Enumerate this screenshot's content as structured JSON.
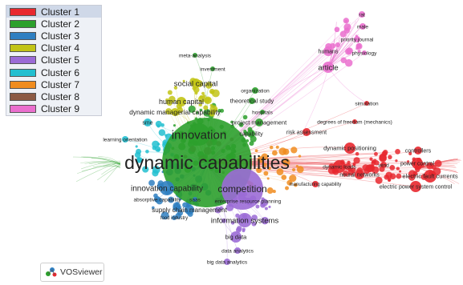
{
  "app": {
    "logo_text": "VOSviewer"
  },
  "legend": [
    {
      "label": "Cluster 1",
      "color": "#e8282f",
      "selected": true
    },
    {
      "label": "Cluster 2",
      "color": "#2ca02c"
    },
    {
      "label": "Cluster 3",
      "color": "#2f7fc1"
    },
    {
      "label": "Cluster 4",
      "color": "#c2c416"
    },
    {
      "label": "Cluster 5",
      "color": "#9b6bd6"
    },
    {
      "label": "Cluster 6",
      "color": "#22bfd0"
    },
    {
      "label": "Cluster 7",
      "color": "#f08c1e"
    },
    {
      "label": "Cluster 8",
      "color": "#8c5a44"
    },
    {
      "label": "Cluster 9",
      "color": "#ea6fce"
    }
  ],
  "network": {
    "terms": [
      {
        "label": "dynamic capabilities",
        "cluster": 2
      },
      {
        "label": "innovation",
        "cluster": 2
      },
      {
        "label": "competition",
        "cluster": 5
      },
      {
        "label": "innovation capability",
        "cluster": 3
      },
      {
        "label": "information systems",
        "cluster": 5
      },
      {
        "label": "supply chain management",
        "cluster": 3
      },
      {
        "label": "social capital",
        "cluster": 4
      },
      {
        "label": "human capital",
        "cluster": 4
      },
      {
        "label": "dynamic managerial capability",
        "cluster": 4
      },
      {
        "label": "sme",
        "cluster": 6
      },
      {
        "label": "learning orientation",
        "cluster": 6
      },
      {
        "label": "meta-analysis",
        "cluster": 2
      },
      {
        "label": "investment",
        "cluster": 2
      },
      {
        "label": "organization",
        "cluster": 2
      },
      {
        "label": "theoretical study",
        "cluster": 2
      },
      {
        "label": "hospitals",
        "cluster": 2
      },
      {
        "label": "project management",
        "cluster": 2
      },
      {
        "label": "capability",
        "cluster": 2
      },
      {
        "label": "risk assessment",
        "cluster": 1
      },
      {
        "label": "degrees of freedom (mechanics)",
        "cluster": 1
      },
      {
        "label": "dynamic positioning",
        "cluster": 1
      },
      {
        "label": "dynamic loads",
        "cluster": 1
      },
      {
        "label": "neural networks",
        "cluster": 1
      },
      {
        "label": "manufacturing capability",
        "cluster": 1
      },
      {
        "label": "controllers",
        "cluster": 1
      },
      {
        "label": "wind",
        "cluster": 1
      },
      {
        "label": "power control",
        "cluster": 1
      },
      {
        "label": "electric fault currents",
        "cluster": 1
      },
      {
        "label": "electric power system control",
        "cluster": 1
      },
      {
        "label": "absorptive capability",
        "cluster": 3
      },
      {
        "label": "saas",
        "cluster": 3
      },
      {
        "label": "enterprise resource planning",
        "cluster": 5
      },
      {
        "label": "food industry",
        "cluster": 3
      },
      {
        "label": "big data",
        "cluster": 5
      },
      {
        "label": "data analytics",
        "cluster": 5
      },
      {
        "label": "big data analytics",
        "cluster": 5
      },
      {
        "label": "article",
        "cluster": 9
      },
      {
        "label": "humans",
        "cluster": 9
      },
      {
        "label": "priority journal",
        "cluster": 9
      },
      {
        "label": "physiology",
        "cluster": 9
      },
      {
        "label": "male",
        "cluster": 9
      },
      {
        "label": "rat",
        "cluster": 9
      },
      {
        "label": "simulation",
        "cluster": 1
      }
    ]
  }
}
